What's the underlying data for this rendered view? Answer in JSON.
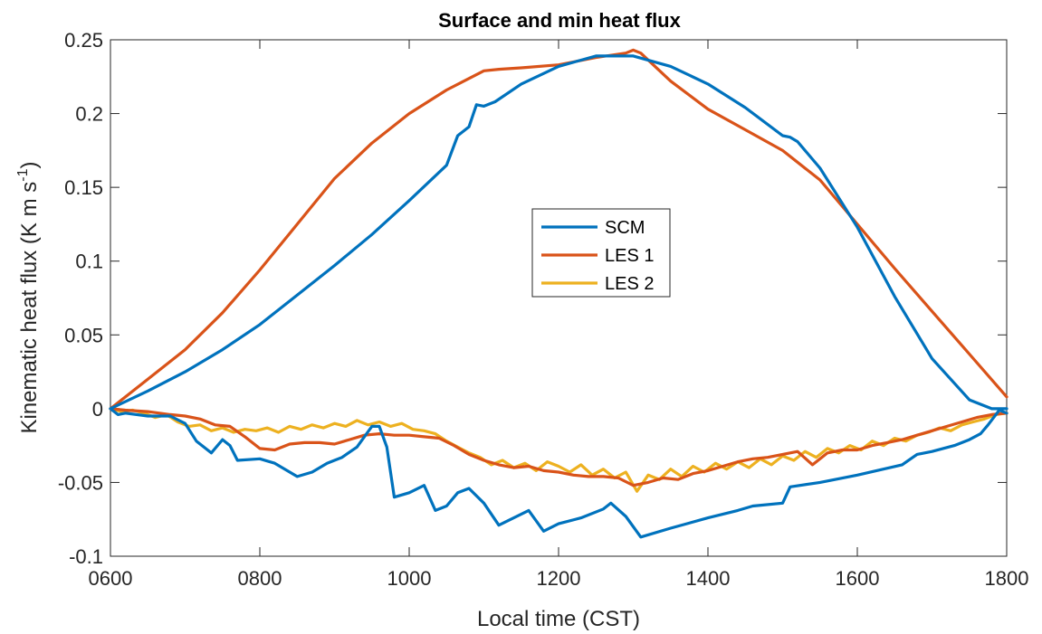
{
  "chart_data": {
    "type": "line",
    "title": "Surface and min heat flux",
    "xlabel": "Local time (CST)",
    "ylabel": "Kinematic heat flux (K m s",
    "ylabel_sup": "-1",
    "ylabel_end": ")",
    "xlim": [
      600,
      1800
    ],
    "ylim": [
      -0.1,
      0.25
    ],
    "x_ticks": [
      600,
      800,
      1000,
      1200,
      1400,
      1600,
      1800
    ],
    "x_tick_labels": [
      "0600",
      "0800",
      "1000",
      "1200",
      "1400",
      "1600",
      "1800"
    ],
    "y_ticks": [
      -0.1,
      -0.05,
      0,
      0.05,
      0.1,
      0.15,
      0.2,
      0.25
    ],
    "y_tick_labels": [
      "-0.1",
      "-0.05",
      "0",
      "0.05",
      "0.1",
      "0.15",
      "0.2",
      "0.25"
    ],
    "grid": false,
    "legend_position": "center",
    "series": [
      {
        "name": "SCM",
        "color": "#0072BD",
        "role": "surface",
        "x": [
          600,
          650,
          700,
          750,
          800,
          850,
          900,
          950,
          1000,
          1050,
          1065,
          1080,
          1090,
          1100,
          1115,
          1150,
          1200,
          1250,
          1300,
          1350,
          1400,
          1450,
          1500,
          1510,
          1520,
          1550,
          1600,
          1650,
          1700,
          1750,
          1780,
          1800
        ],
        "y": [
          0,
          0.012,
          0.025,
          0.04,
          0.057,
          0.077,
          0.097,
          0.118,
          0.141,
          0.165,
          0.185,
          0.191,
          0.206,
          0.205,
          0.208,
          0.22,
          0.232,
          0.239,
          0.239,
          0.232,
          0.22,
          0.204,
          0.185,
          0.184,
          0.181,
          0.163,
          0.123,
          0.076,
          0.034,
          0.006,
          0,
          0
        ]
      },
      {
        "name": "SCM",
        "color": "#0072BD",
        "role": "min",
        "x": [
          600,
          610,
          620,
          650,
          680,
          700,
          715,
          735,
          750,
          760,
          770,
          800,
          820,
          850,
          870,
          890,
          910,
          930,
          950,
          960,
          970,
          980,
          1000,
          1020,
          1035,
          1050,
          1065,
          1080,
          1100,
          1120,
          1140,
          1160,
          1180,
          1200,
          1230,
          1260,
          1270,
          1290,
          1310,
          1350,
          1400,
          1440,
          1460,
          1500,
          1510,
          1550,
          1600,
          1660,
          1680,
          1700,
          1730,
          1750,
          1765,
          1775,
          1790,
          1800
        ],
        "y": [
          0,
          -0.004,
          -0.003,
          -0.005,
          -0.005,
          -0.01,
          -0.022,
          -0.03,
          -0.021,
          -0.025,
          -0.035,
          -0.034,
          -0.037,
          -0.046,
          -0.043,
          -0.037,
          -0.033,
          -0.026,
          -0.012,
          -0.012,
          -0.026,
          -0.06,
          -0.057,
          -0.052,
          -0.069,
          -0.066,
          -0.057,
          -0.054,
          -0.064,
          -0.079,
          -0.074,
          -0.069,
          -0.083,
          -0.078,
          -0.074,
          -0.068,
          -0.064,
          -0.073,
          -0.087,
          -0.081,
          -0.074,
          -0.069,
          -0.066,
          -0.064,
          -0.053,
          -0.05,
          -0.045,
          -0.038,
          -0.031,
          -0.029,
          -0.025,
          -0.021,
          -0.017,
          -0.011,
          -0.001,
          -0.003
        ]
      },
      {
        "name": "LES 1",
        "color": "#D95319",
        "role": "surface",
        "x": [
          600,
          650,
          700,
          750,
          800,
          850,
          900,
          950,
          1000,
          1050,
          1100,
          1120,
          1150,
          1200,
          1250,
          1290,
          1300,
          1310,
          1350,
          1400,
          1450,
          1500,
          1550,
          1600,
          1650,
          1700,
          1750,
          1800
        ],
        "y": [
          0,
          0.02,
          0.04,
          0.065,
          0.094,
          0.125,
          0.156,
          0.18,
          0.2,
          0.216,
          0.229,
          0.23,
          0.231,
          0.233,
          0.238,
          0.241,
          0.243,
          0.241,
          0.222,
          0.203,
          0.189,
          0.175,
          0.155,
          0.125,
          0.095,
          0.066,
          0.037,
          0.008
        ]
      },
      {
        "name": "LES 1",
        "color": "#D95319",
        "role": "min",
        "x": [
          600,
          620,
          650,
          680,
          700,
          720,
          740,
          760,
          780,
          800,
          820,
          840,
          860,
          880,
          900,
          920,
          940,
          960,
          980,
          1000,
          1020,
          1040,
          1060,
          1080,
          1100,
          1120,
          1140,
          1160,
          1180,
          1200,
          1220,
          1240,
          1260,
          1280,
          1300,
          1320,
          1340,
          1360,
          1380,
          1400,
          1420,
          1440,
          1460,
          1480,
          1500,
          1520,
          1540,
          1560,
          1580,
          1600,
          1620,
          1640,
          1660,
          1680,
          1700,
          1720,
          1740,
          1760,
          1780,
          1800
        ],
        "y": [
          0,
          -0.001,
          -0.002,
          -0.004,
          -0.005,
          -0.007,
          -0.011,
          -0.012,
          -0.019,
          -0.027,
          -0.028,
          -0.024,
          -0.023,
          -0.023,
          -0.024,
          -0.021,
          -0.018,
          -0.017,
          -0.018,
          -0.018,
          -0.019,
          -0.02,
          -0.025,
          -0.031,
          -0.035,
          -0.038,
          -0.04,
          -0.039,
          -0.042,
          -0.043,
          -0.045,
          -0.046,
          -0.046,
          -0.047,
          -0.052,
          -0.05,
          -0.047,
          -0.048,
          -0.044,
          -0.042,
          -0.039,
          -0.036,
          -0.034,
          -0.033,
          -0.031,
          -0.029,
          -0.038,
          -0.03,
          -0.028,
          -0.028,
          -0.025,
          -0.023,
          -0.021,
          -0.018,
          -0.015,
          -0.012,
          -0.009,
          -0.006,
          -0.004,
          -0.003
        ]
      },
      {
        "name": "LES 2",
        "color": "#EDB120",
        "role": "min",
        "x": [
          600,
          615,
          630,
          645,
          660,
          675,
          690,
          705,
          720,
          735,
          750,
          765,
          780,
          795,
          810,
          825,
          840,
          855,
          870,
          885,
          900,
          915,
          930,
          945,
          960,
          975,
          990,
          1005,
          1020,
          1035,
          1050,
          1065,
          1080,
          1095,
          1110,
          1125,
          1140,
          1155,
          1170,
          1185,
          1200,
          1215,
          1230,
          1245,
          1260,
          1275,
          1290,
          1305,
          1320,
          1335,
          1350,
          1365,
          1380,
          1395,
          1410,
          1425,
          1440,
          1455,
          1470,
          1485,
          1500,
          1515,
          1530,
          1545,
          1560,
          1575,
          1590,
          1605,
          1620,
          1635,
          1650,
          1665,
          1680,
          1695,
          1710,
          1725,
          1740,
          1755,
          1770,
          1785,
          1800
        ],
        "y": [
          0,
          -0.002,
          -0.001,
          -0.003,
          -0.006,
          -0.004,
          -0.009,
          -0.012,
          -0.011,
          -0.015,
          -0.013,
          -0.016,
          -0.014,
          -0.015,
          -0.013,
          -0.016,
          -0.012,
          -0.014,
          -0.011,
          -0.013,
          -0.01,
          -0.012,
          -0.008,
          -0.011,
          -0.009,
          -0.012,
          -0.01,
          -0.014,
          -0.015,
          -0.017,
          -0.022,
          -0.026,
          -0.03,
          -0.033,
          -0.038,
          -0.035,
          -0.04,
          -0.037,
          -0.042,
          -0.036,
          -0.039,
          -0.043,
          -0.038,
          -0.045,
          -0.041,
          -0.047,
          -0.043,
          -0.056,
          -0.045,
          -0.048,
          -0.041,
          -0.046,
          -0.039,
          -0.043,
          -0.037,
          -0.041,
          -0.036,
          -0.04,
          -0.034,
          -0.038,
          -0.032,
          -0.035,
          -0.029,
          -0.033,
          -0.027,
          -0.03,
          -0.025,
          -0.028,
          -0.022,
          -0.025,
          -0.02,
          -0.022,
          -0.018,
          -0.016,
          -0.013,
          -0.015,
          -0.011,
          -0.009,
          -0.007,
          -0.004,
          -0.003
        ]
      }
    ],
    "legend": [
      {
        "name": "SCM",
        "color": "#0072BD"
      },
      {
        "name": "LES 1",
        "color": "#D95319"
      },
      {
        "name": "LES 2",
        "color": "#EDB120"
      }
    ]
  }
}
